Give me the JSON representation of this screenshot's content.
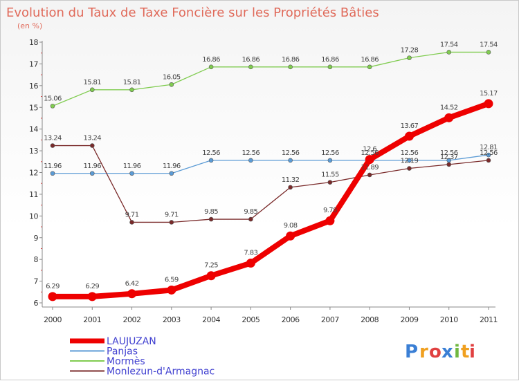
{
  "chart_data": {
    "type": "line",
    "title": "Evolution du Taux de Taxe Foncière sur les Propriétés Bâties",
    "subtitle": "(en %)",
    "x": [
      "2000",
      "2001",
      "2002",
      "2003",
      "2004",
      "2005",
      "2006",
      "2007",
      "2008",
      "2009",
      "2010",
      "2011"
    ],
    "ylim": [
      6,
      18
    ],
    "yticks": [
      "6",
      "7",
      "8",
      "9",
      "10",
      "11",
      "12",
      "13",
      "14",
      "15",
      "16",
      "17",
      "18"
    ],
    "grid": "off",
    "legend_position": "bottom-left",
    "series": [
      {
        "name": "LAUJUZAN",
        "color": "#ee0000",
        "values": [
          6.29,
          6.29,
          6.42,
          6.59,
          7.25,
          7.83,
          9.08,
          9.78,
          12.6,
          13.67,
          14.52,
          15.17
        ],
        "labels": [
          "6.29",
          "6.29",
          "6.42",
          "6.59",
          "7.25",
          "7.83",
          "9.08",
          "9.78",
          "12.6",
          "13.67",
          "14.52",
          "15.17"
        ]
      },
      {
        "name": "Panjas",
        "color": "#5b9bd5",
        "values": [
          11.96,
          11.96,
          11.96,
          11.96,
          12.56,
          12.56,
          12.56,
          12.56,
          12.56,
          12.56,
          12.56,
          12.81
        ],
        "labels": [
          "11.96",
          "11.96",
          "11.96",
          "11.96",
          "12.56",
          "12.56",
          "12.56",
          "12.56",
          "12.56",
          "12.56",
          "12.56",
          "12.81"
        ]
      },
      {
        "name": "Mormès",
        "color": "#80cc50",
        "values": [
          15.06,
          15.81,
          15.81,
          16.05,
          16.86,
          16.86,
          16.86,
          16.86,
          16.86,
          17.28,
          17.54,
          17.54
        ],
        "labels": [
          "15.06",
          "15.81",
          "15.81",
          "16.05",
          "16.86",
          "16.86",
          "16.86",
          "16.86",
          "16.86",
          "17.28",
          "17.54",
          "17.54"
        ]
      },
      {
        "name": "Monlezun-d'Armagnac",
        "color": "#7a2a2a",
        "values": [
          13.24,
          13.24,
          9.71,
          9.71,
          9.85,
          9.85,
          11.32,
          11.55,
          11.89,
          12.19,
          12.37,
          12.56
        ],
        "labels": [
          "13.24",
          "13.24",
          "9.71",
          "9.71",
          "9.85",
          "9.85",
          "11.32",
          "11.55",
          "11.89",
          "12.19",
          "12.37",
          "12.56"
        ]
      }
    ]
  },
  "logo": {
    "letters": [
      "P",
      "r",
      "o",
      "x",
      "i",
      "t",
      "i"
    ],
    "colors": [
      "#3a7fd5",
      "#f0a020",
      "#e04040",
      "#3a7fd5",
      "#70b840",
      "#f0a020",
      "#e04040"
    ]
  }
}
